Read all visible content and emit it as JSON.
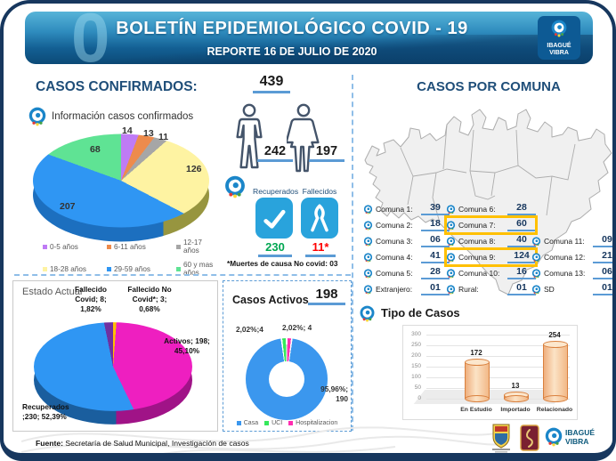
{
  "palette": {
    "navy": "#1F4E79",
    "underline_blue": "#5B9BD5",
    "green": "#00A651",
    "red": "#FF0000",
    "highlight": "#FFC000",
    "tile_blue": "#29A3DC",
    "border_navy": "#17375E"
  },
  "header": {
    "title": "BOLETÍN EPIDEMIOLÓGICO COVID - 19",
    "subtitle": "REPORTE 16 DE JULIO DE 2020",
    "logo_line1": "IBAGUÉ",
    "logo_line2": "VIBRA"
  },
  "confirmed": {
    "section_title": "CASOS CONFIRMADOS:",
    "info_label": "Información casos confirmados",
    "total": "439",
    "male": "242",
    "female": "197",
    "recovered_label": "Recuperados",
    "deceased_label": "Fallecidos",
    "recovered": "230",
    "deceased": "11*",
    "footnote": "*Muertes de causa No covid: 03"
  },
  "comunas": {
    "section_title": "CASOS POR COMUNA",
    "columns": [
      [
        {
          "label": "Comuna 1:",
          "value": "39"
        },
        {
          "label": "Comuna 2:",
          "value": "18"
        },
        {
          "label": "Comuna 3:",
          "value": "06"
        },
        {
          "label": "Comuna 4:",
          "value": "41"
        },
        {
          "label": "Comuna 5:",
          "value": "28"
        },
        {
          "label": "Extranjero:",
          "value": "01"
        }
      ],
      [
        {
          "label": "Comuna 6:",
          "value": "28"
        },
        {
          "label": "Comuna 7:",
          "value": "60",
          "highlight": true
        },
        {
          "label": "Comuna 8:",
          "value": "40"
        },
        {
          "label": "Comuna 9:",
          "value": "124",
          "highlight": true
        },
        {
          "label": "Comuna 10:",
          "value": "16"
        },
        {
          "label": "Rural:",
          "value": "01"
        }
      ],
      [
        null,
        null,
        {
          "label": "Comuna 11:",
          "value": "09"
        },
        {
          "label": "Comuna 12:",
          "value": "21"
        },
        {
          "label": "Comuna 13:",
          "value": "06"
        },
        {
          "label": "SD",
          "value": "01"
        }
      ]
    ]
  },
  "estado": {
    "title": "Estado Actual",
    "label_fallecido_covid": "Fallecido Covid; 8; 1,82%",
    "label_fallecido_no_covid": "Fallecido No Covid*; 3; 0,68%",
    "label_activos": "Activos; 198; 45,10%",
    "label_recuperados": "Recuperados ;230; 52,39%"
  },
  "activos": {
    "title": "Casos Activos",
    "total": "198",
    "label_uci": "2,02%;4",
    "label_hosp": "2,02%; 4",
    "label_casa": "95,96%; 190"
  },
  "tipo": {
    "title": "Tipo de Casos"
  },
  "footer": {
    "source_bold": "Fuente:",
    "source_rest": " Secretaría de Salud Municipal, Investigación de casos",
    "brand_line1": "IBAGUÉ",
    "brand_line2": "VIBRA"
  },
  "chart_data": [
    {
      "type": "pie",
      "title": "Información casos confirmados",
      "labels": [
        "0-5 años",
        "6-11 años",
        "12-17 años",
        "18-28 años",
        "29-59 años",
        "60 y mas años"
      ],
      "values": [
        14,
        13,
        11,
        126,
        207,
        68
      ],
      "total": 439,
      "colors": [
        "#BF7BF5",
        "#ED8B4C",
        "#A6A6A6",
        "#FEF3A2",
        "#2F96F3",
        "#5FE394"
      ],
      "legend_position": "bottom",
      "style": "3d-pie"
    },
    {
      "type": "pie",
      "title": "Estado Actual",
      "labels": [
        "Activos",
        "Recuperados",
        "Fallecido Covid",
        "Fallecido No Covid*"
      ],
      "values": [
        198,
        230,
        8,
        3
      ],
      "percents": [
        "45,10%",
        "52,39%",
        "1,82%",
        "0,68%"
      ],
      "total": 439,
      "colors": [
        "#EE1FC0",
        "#2F96F3",
        "#7030A0",
        "#FFC000"
      ],
      "style": "3d-pie"
    },
    {
      "type": "pie",
      "subtype": "donut",
      "title": "Casos Activos",
      "total": 198,
      "total_label": "198",
      "labels": [
        "Casa",
        "UCI",
        "Hospitalizacion"
      ],
      "values": [
        190,
        4,
        4
      ],
      "percents": [
        "95,96%",
        "2,02%",
        "2,02%"
      ],
      "colors": [
        "#3B97EE",
        "#35E85B",
        "#FF2DB0"
      ],
      "legend_position": "bottom"
    },
    {
      "type": "bar",
      "title": "Tipo de Casos",
      "categories": [
        "En Estudio",
        "Importado",
        "Relacionado"
      ],
      "values": [
        172,
        13,
        254
      ],
      "ylim": [
        0,
        300
      ],
      "yticks": [
        0,
        50,
        100,
        150,
        200,
        250,
        300
      ],
      "bar_color": "#F8CFA4",
      "grid": true,
      "style": "3d-cylinder"
    }
  ]
}
